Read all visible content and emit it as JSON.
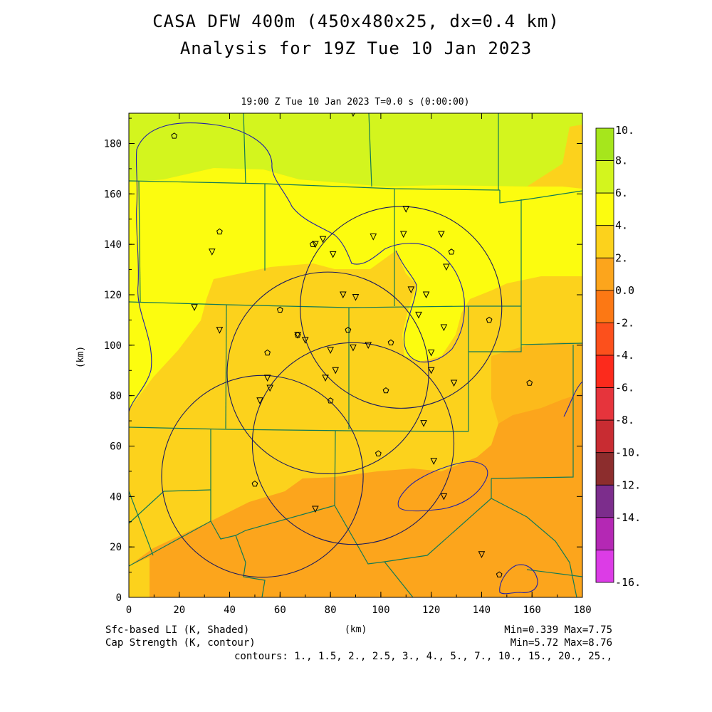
{
  "header": {
    "title_line1": "CASA DFW 400m (450x480x25, dx=0.4 km)",
    "title_line2": "Analysis for 19Z Tue 10 Jan 2023",
    "time_label": "19:00 Z Tue 10 Jan 2023    T=0.0 s (0:00:00)"
  },
  "axes": {
    "xlabel": "(km)",
    "ylabel": "(km)",
    "x_ticks": [
      "0",
      "20",
      "40",
      "60",
      "80",
      "100",
      "120",
      "140",
      "160",
      "180"
    ],
    "y_ticks": [
      "0",
      "20",
      "40",
      "60",
      "80",
      "100",
      "120",
      "140",
      "160",
      "180"
    ],
    "xlim": [
      0,
      180
    ],
    "ylim": [
      0,
      192
    ]
  },
  "colorbar": {
    "labels": [
      "10.",
      "8.",
      "6.",
      "4.",
      "2.",
      "0.0",
      "-2.",
      "-4.",
      "-6.",
      "-8.",
      "-10.",
      "-12.",
      "-14.",
      "-16."
    ],
    "colors": [
      "#a6e61c",
      "#d3f51e",
      "#fcfc0f",
      "#fcd21c",
      "#fca51c",
      "#fc7814",
      "#fc501c",
      "#fc2a1c",
      "#e6343c",
      "#c82c32",
      "#8c2d2d",
      "#7c2d8c",
      "#b428b4",
      "#dc3ce6"
    ]
  },
  "footer": {
    "left_line1": "Sfc-based LI (K, Shaded)",
    "left_line2": "Cap Strength (K, contour)",
    "center": "(km)",
    "right_line1": "Min=0.339 Max=7.75",
    "right_line2": "Min=5.72 Max=8.76",
    "contours": "contours: 1., 1.5, 2., 2.5, 3., 4., 5., 7., 10., 15., 20., 25.,"
  },
  "map": {
    "radar_rings_center_km": [
      {
        "x": 108,
        "y": 115
      },
      {
        "x": 79,
        "y": 89
      },
      {
        "x": 53,
        "y": 48
      },
      {
        "x": 89,
        "y": 61
      }
    ],
    "radar_ring_radius_km": 40,
    "triangle_sites_km": [
      [
        89,
        192
      ],
      [
        110,
        154
      ],
      [
        33,
        137
      ],
      [
        74,
        140
      ],
      [
        77,
        142
      ],
      [
        81,
        136
      ],
      [
        97,
        143
      ],
      [
        109,
        144
      ],
      [
        124,
        144
      ],
      [
        126,
        131
      ],
      [
        112,
        122
      ],
      [
        85,
        120
      ],
      [
        90,
        119
      ],
      [
        118,
        120
      ],
      [
        26,
        115
      ],
      [
        36,
        106
      ],
      [
        67,
        104
      ],
      [
        70,
        102
      ],
      [
        80,
        98
      ],
      [
        89,
        99
      ],
      [
        95,
        100
      ],
      [
        120,
        97
      ],
      [
        115,
        112
      ],
      [
        125,
        107
      ],
      [
        55,
        87
      ],
      [
        56,
        83
      ],
      [
        52,
        78
      ],
      [
        78,
        87
      ],
      [
        82,
        90
      ],
      [
        120,
        90
      ],
      [
        129,
        85
      ],
      [
        117,
        69
      ],
      [
        121,
        54
      ],
      [
        125,
        40
      ],
      [
        74,
        35
      ],
      [
        140,
        17
      ]
    ],
    "pentagon_sites_km": [
      [
        18,
        183
      ],
      [
        36,
        145
      ],
      [
        73,
        140
      ],
      [
        128,
        137
      ],
      [
        60,
        114
      ],
      [
        143,
        110
      ],
      [
        87,
        106
      ],
      [
        67,
        104
      ],
      [
        55,
        97
      ],
      [
        104,
        101
      ],
      [
        102,
        82
      ],
      [
        80,
        78
      ],
      [
        159,
        85
      ],
      [
        99,
        57
      ],
      [
        50,
        45
      ],
      [
        147,
        9
      ]
    ]
  }
}
